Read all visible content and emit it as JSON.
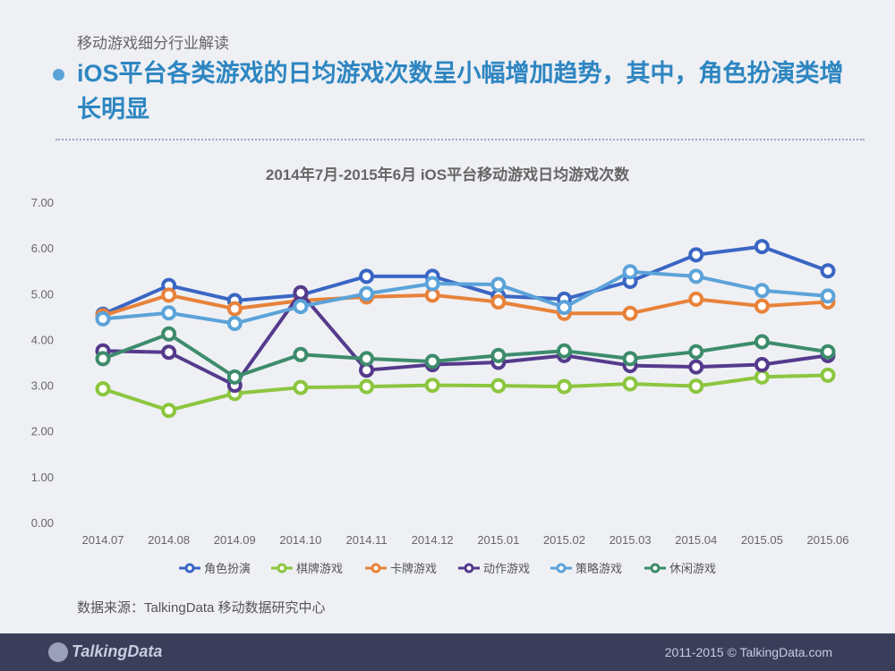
{
  "header": {
    "section": "移动游戏细分行业解读",
    "headline": "iOS平台各类游戏的日均游戏次数呈小幅增加趋势，其中，角色扮演类增长明显"
  },
  "source": "数据来源：TalkingData 移动数据研究中心",
  "footer": {
    "logo": "TalkingData",
    "copyright": "2011-2015 © TalkingData.com"
  },
  "chart_data": {
    "type": "line",
    "title": "2014年7月-2015年6月 iOS平台移动游戏日均游戏次数",
    "categories": [
      "2014.07",
      "2014.08",
      "2014.09",
      "2014.10",
      "2014.11",
      "2014.12",
      "2015.01",
      "2015.02",
      "2015.03",
      "2015.04",
      "2015.05",
      "2015.06"
    ],
    "ylim": [
      0,
      7
    ],
    "yticks": [
      "0.00",
      "1.00",
      "2.00",
      "3.00",
      "4.00",
      "5.00",
      "6.00",
      "7.00"
    ],
    "legend_position": "bottom",
    "series": [
      {
        "name": "角色扮演",
        "color": "#3a66c4",
        "values": [
          4.55,
          5.18,
          4.85,
          4.97,
          5.38,
          5.38,
          4.95,
          4.88,
          5.27,
          5.85,
          6.03,
          5.5
        ]
      },
      {
        "name": "棋牌游戏",
        "color": "#8cc63f",
        "values": [
          2.92,
          2.45,
          2.82,
          2.95,
          2.97,
          3.0,
          2.99,
          2.97,
          3.03,
          2.98,
          3.18,
          3.22
        ]
      },
      {
        "name": "卡牌游戏",
        "color": "#e8823a",
        "values": [
          4.52,
          4.97,
          4.67,
          4.85,
          4.93,
          4.97,
          4.82,
          4.57,
          4.57,
          4.88,
          4.73,
          4.82
        ]
      },
      {
        "name": "动作游戏",
        "color": "#553a8c",
        "values": [
          3.75,
          3.72,
          3.0,
          5.02,
          3.33,
          3.45,
          3.5,
          3.65,
          3.43,
          3.4,
          3.45,
          3.65
        ]
      },
      {
        "name": "策略游戏",
        "color": "#5ba3d9",
        "values": [
          4.45,
          4.58,
          4.35,
          4.72,
          5.0,
          5.22,
          5.2,
          4.7,
          5.48,
          5.38,
          5.07,
          4.95
        ]
      },
      {
        "name": "休闲游戏",
        "color": "#3d8c6c",
        "values": [
          3.58,
          4.12,
          3.18,
          3.67,
          3.58,
          3.52,
          3.65,
          3.75,
          3.58,
          3.73,
          3.95,
          3.73
        ]
      }
    ]
  }
}
